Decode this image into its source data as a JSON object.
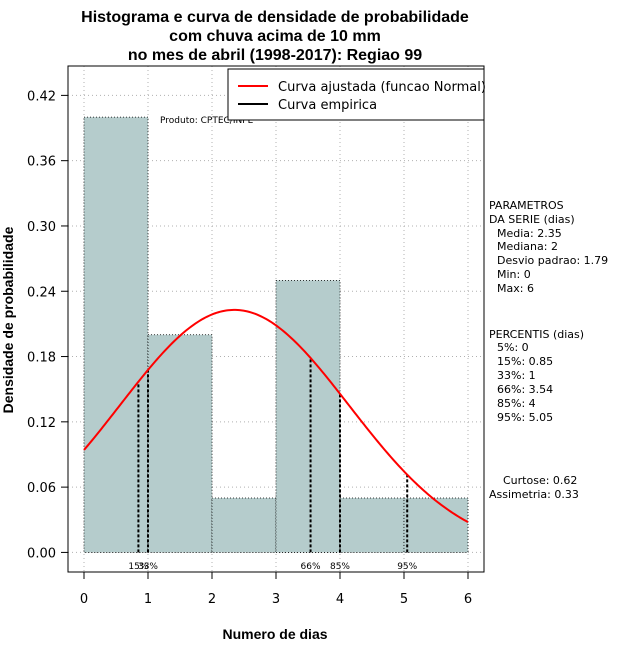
{
  "chart_data": {
    "type": "bar",
    "title_lines": [
      "Histograma e curva de densidade de probabilidade",
      "com chuva acima de 10 mm",
      "no mes de abril (1998-2017): Regiao 99"
    ],
    "xlabel": "Numero de dias",
    "ylabel": "Densidade de probabilidade",
    "xlim": [
      -0.25,
      6.25
    ],
    "ylim": [
      -0.018,
      0.447
    ],
    "x_ticks": [
      0,
      1,
      2,
      3,
      4,
      5,
      6
    ],
    "x_tick_labels": [
      "0",
      "1",
      "2",
      "3",
      "4",
      "5",
      "6"
    ],
    "y_ticks": [
      0.0,
      0.06,
      0.12,
      0.18,
      0.24,
      0.3,
      0.36,
      0.42
    ],
    "y_tick_labels": [
      "0.00",
      "0.06",
      "0.12",
      "0.18",
      "0.24",
      "0.30",
      "0.36",
      "0.42"
    ],
    "grid": true,
    "bins": [
      {
        "start": 0,
        "end": 1,
        "density": 0.4
      },
      {
        "start": 1,
        "end": 2,
        "density": 0.2
      },
      {
        "start": 2,
        "end": 3,
        "density": 0.05
      },
      {
        "start": 3,
        "end": 4,
        "density": 0.25
      },
      {
        "start": 4,
        "end": 5,
        "density": 0.05
      },
      {
        "start": 5,
        "end": 6,
        "density": 0.05
      }
    ],
    "normal_curve": {
      "mean": 2.35,
      "sd": 1.79,
      "x_range": [
        0,
        6
      ]
    },
    "percentile_lines": [
      {
        "label": "15%",
        "x": 0.85
      },
      {
        "label": "33%",
        "x": 1
      },
      {
        "label": "66%",
        "x": 3.54
      },
      {
        "label": "85%",
        "x": 4
      },
      {
        "label": "95%",
        "x": 5.05
      }
    ],
    "legend": {
      "position": "top-right",
      "entries": [
        {
          "label": "Curva ajustada (funcao Normal)",
          "color": "#ff0000"
        },
        {
          "label": "Curva empirica",
          "color": "#000000"
        }
      ]
    },
    "product_note": "Produto: CPTEC/INPE",
    "colors": {
      "bar_fill": "#b5cccc",
      "curve": "#ff0000",
      "grid": "#b0b0b0"
    }
  },
  "side_panel": {
    "param_lines": [
      "PARAMETROS",
      "DA SERIE (dias)"
    ],
    "param_items": [
      "Media: 2.35",
      "Mediana: 2",
      "Desvio padrao: 1.79",
      "Min: 0",
      "Max: 6"
    ],
    "perc_title": "PERCENTIS (dias)",
    "perc_items": [
      "5%: 0",
      "15%: 0.85",
      "33%: 1",
      "66%: 3.54",
      "85%: 4",
      "95%: 5.05"
    ],
    "curtose": "Curtose: 0.62",
    "assimetria": "Assimetria: 0.33"
  }
}
